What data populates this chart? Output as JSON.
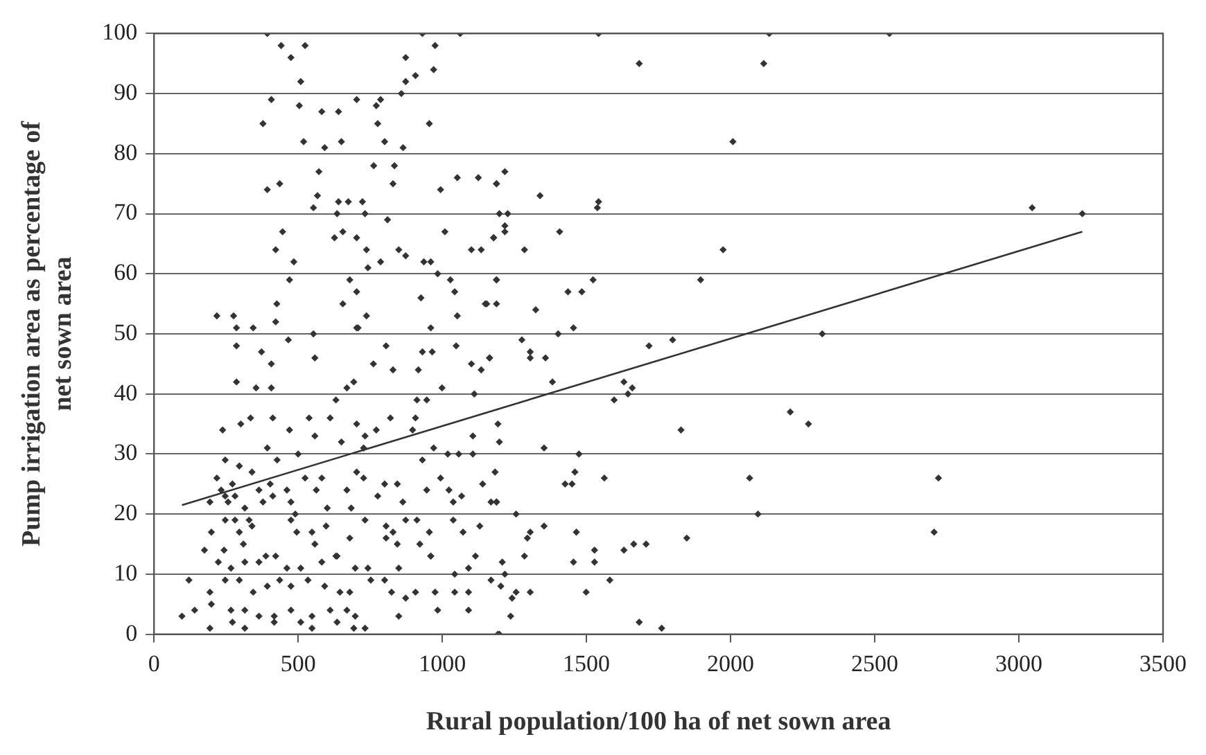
{
  "chart_data": {
    "type": "scatter",
    "xlabel": "Rural population/100 ha of net sown area",
    "ylabel": "Pump irrigation area as percentage of net sown area",
    "xlim": [
      0,
      3500
    ],
    "xticks": [
      0,
      500,
      1000,
      1500,
      2000,
      2500,
      3000,
      3500
    ],
    "ylim": [
      0,
      100
    ],
    "yticks": [
      0,
      10,
      20,
      30,
      40,
      50,
      60,
      70,
      80,
      90,
      100
    ],
    "grid": "y",
    "legend": false,
    "series": [
      {
        "type": "scatter",
        "color": "#333333",
        "marker": "diamond",
        "x": [
          931,
          1062,
          1542,
          2134,
          1683,
          2115,
          2008,
          1217,
          1188,
          1339,
          1542,
          1538,
          1198,
          1227,
          1217,
          1217,
          1178,
          1407,
          1285,
          1974,
          1188,
          1523,
          1154,
          1188,
          1484,
          1436,
          1896,
          1324,
          1402,
          1455,
          2318,
          1276,
          1164,
          1305,
          1305,
          1358,
          1382,
          1717,
          1799,
          1630,
          1596,
          1644,
          1659,
          1193,
          1198,
          1828,
          2207,
          2270,
          1353,
          1474,
          1460,
          1426,
          1450,
          1562,
          1183,
          1169,
          1188,
          1256,
          2066,
          2095,
          1353,
          1305,
          1295,
          1465,
          1285,
          1528,
          1528,
          1630,
          1664,
          1707,
          1848,
          1455,
          1208,
          1217,
          1169,
          1203,
          1256,
          1305,
          1499,
          1581,
          1242,
          1237,
          1683,
          1761,
          1198,
          3046,
          3220,
          2721,
          2706,
          2551,
          393,
          441,
          475,
          524,
          509,
          407,
          504,
          582,
          640,
          703,
          771,
          786,
          873,
          975,
          970,
          907,
          873,
          858,
          378,
          776,
          955,
          519,
          592,
          650,
          800,
          864,
          572,
          762,
          834,
          829,
          393,
          436,
          567,
          553,
          635,
          640,
          674,
          723,
          732,
          810,
          994,
          1052,
          1125,
          1188,
          446,
          422,
          485,
          470,
          626,
          655,
          703,
          737,
          786,
          742,
          849,
          873,
          936,
          960,
          1009,
          1101,
          1135,
          1178,
          984,
          1028,
          1043,
          1188,
          679,
          703,
          655,
          926,
          1149,
          218,
          276,
          426,
          422,
          286,
          344,
          703,
          737,
          960,
          1052,
          286,
          373,
          286,
          354,
          407,
          407,
          558,
          553,
          466,
          708,
          805,
          761,
          829,
          917,
          931,
          965,
          1048,
          1101,
          1135,
          1164,
          999,
          1111,
          669,
          693,
          631,
          912,
          946,
          335,
          301,
          412,
          470,
          538,
          611,
          703,
          771,
          820,
          907,
          238,
          558,
          650,
          732,
          897,
          1106,
          393,
          727,
          970,
          1019,
          1057,
          1106,
          247,
          296,
          427,
          500,
          931,
          218,
          272,
          340,
          524,
          582,
          703,
          727,
          800,
          844,
          994,
          1140,
          403,
          461,
          233,
          247,
          281,
          364,
          412,
          563,
          669,
          776,
          946,
          1023,
          1067,
          1188,
          194,
          257,
          315,
          378,
          475,
          601,
          684,
          863,
          1038,
          247,
          281,
          330,
          475,
          490,
          597,
          732,
          805,
          873,
          912,
          1038,
          1130,
          199,
          296,
          340,
          495,
          548,
          829,
          955,
          1072,
          175,
          243,
          310,
          388,
          422,
          558,
          635,
          679,
          805,
          844,
          922,
          960,
          1115,
          223,
          267,
          315,
          364,
          461,
          509,
          582,
          631,
          698,
          742,
          849,
          960,
          1043,
          1091,
          121,
          194,
          247,
          296,
          344,
          393,
          436,
          475,
          534,
          592,
          645,
          679,
          752,
          800,
          824,
          873,
          907,
          975,
          1043,
          1091,
          97,
          141,
          199,
          267,
          315,
          364,
          417,
          475,
          548,
          611,
          669,
          698,
          849,
          984,
          1091,
          194,
          272,
          315,
          417,
          509,
          548,
          635,
          693,
          732,
          1193
        ],
        "values": [
          100,
          100,
          100,
          100,
          95,
          95,
          82,
          77,
          75,
          73,
          72,
          71,
          70,
          70,
          68,
          67,
          66,
          67,
          64,
          64,
          59,
          59,
          55,
          55,
          57,
          57,
          59,
          54,
          50,
          51,
          50,
          49,
          46,
          47,
          46,
          46,
          42,
          48,
          49,
          42,
          39,
          40,
          41,
          35,
          32,
          34,
          37,
          35,
          31,
          30,
          27,
          25,
          25,
          26,
          27,
          22,
          22,
          20,
          26,
          20,
          18,
          17,
          16,
          17,
          13,
          14,
          12,
          14,
          15,
          15,
          16,
          12,
          12,
          10,
          9,
          8,
          7,
          7,
          7,
          9,
          6,
          3,
          2,
          1,
          0,
          71,
          70,
          26,
          17,
          100,
          100,
          98,
          96,
          98,
          92,
          89,
          88,
          87,
          87,
          89,
          88,
          89,
          96,
          98,
          94,
          93,
          92,
          90,
          85,
          85,
          85,
          82,
          81,
          82,
          82,
          81,
          77,
          78,
          78,
          75,
          74,
          75,
          73,
          71,
          70,
          72,
          72,
          72,
          70,
          69,
          74,
          76,
          76,
          75,
          67,
          64,
          62,
          59,
          66,
          67,
          66,
          64,
          62,
          61,
          64,
          63,
          62,
          62,
          67,
          64,
          64,
          66,
          60,
          59,
          57,
          59,
          59,
          57,
          55,
          56,
          55,
          53,
          53,
          55,
          52,
          51,
          51,
          51,
          53,
          51,
          53,
          48,
          47,
          42,
          41,
          41,
          45,
          46,
          50,
          49,
          51,
          48,
          45,
          44,
          44,
          47,
          47,
          48,
          45,
          44,
          46,
          41,
          40,
          41,
          42,
          39,
          39,
          39,
          36,
          35,
          36,
          34,
          36,
          36,
          35,
          34,
          36,
          36,
          34,
          33,
          32,
          33,
          34,
          33,
          31,
          31,
          31,
          30,
          30,
          30,
          29,
          28,
          29,
          30,
          29,
          26,
          25,
          27,
          26,
          26,
          27,
          26,
          25,
          25,
          26,
          25,
          25,
          24,
          24,
          23,
          23,
          24,
          23,
          24,
          24,
          23,
          24,
          24,
          23,
          22,
          22,
          22,
          21,
          22,
          22,
          21,
          21,
          22,
          22,
          19,
          19,
          19,
          19,
          20,
          18,
          19,
          18,
          19,
          19,
          19,
          18,
          17,
          17,
          18,
          17,
          17,
          17,
          17,
          17,
          14,
          14,
          15,
          13,
          13,
          15,
          13,
          16,
          16,
          15,
          15,
          13,
          13,
          12,
          11,
          12,
          12,
          11,
          11,
          12,
          13,
          11,
          11,
          11,
          13,
          10,
          11,
          9,
          7,
          9,
          9,
          7,
          8,
          9,
          8,
          9,
          8,
          7,
          7,
          9,
          9,
          7,
          6,
          7,
          7,
          7,
          7,
          3,
          4,
          5,
          4,
          4,
          3,
          3,
          4,
          3,
          4,
          4,
          3,
          3,
          4,
          4,
          1,
          2,
          1,
          2,
          2,
          1,
          2,
          1,
          1,
          0
        ]
      },
      {
        "type": "line",
        "color": "#333333",
        "marker": "none",
        "x": [
          97,
          3220
        ],
        "values": [
          21.5,
          67
        ]
      }
    ]
  }
}
